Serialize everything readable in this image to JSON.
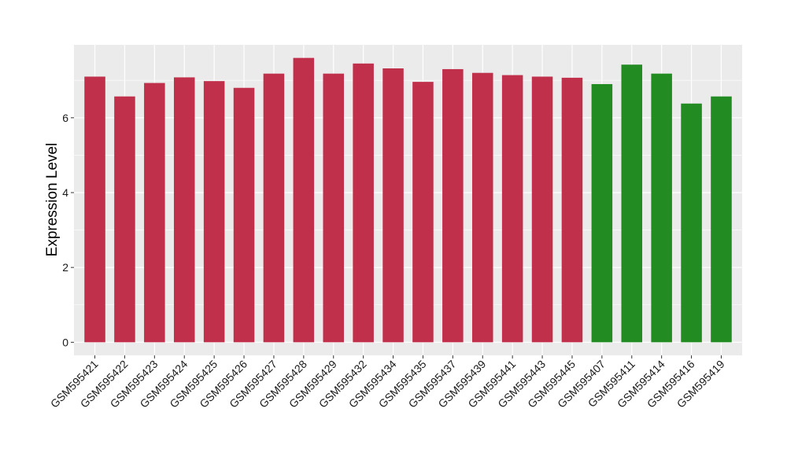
{
  "chart_data": {
    "type": "bar",
    "title": "",
    "xlabel": "",
    "ylabel": "Expression Level",
    "ylim": [
      -0.35,
      7.95
    ],
    "yticks": [
      0,
      2,
      4,
      6
    ],
    "grid": true,
    "legend": "none",
    "panel_background": "#ebebeb",
    "grid_color": "#ffffff",
    "categories": [
      "GSM595421",
      "GSM595422",
      "GSM595423",
      "GSM595424",
      "GSM595425",
      "GSM595426",
      "GSM595427",
      "GSM595428",
      "GSM595429",
      "GSM595432",
      "GSM595434",
      "GSM595435",
      "GSM595437",
      "GSM595439",
      "GSM595441",
      "GSM595443",
      "GSM595445",
      "GSM595407",
      "GSM595411",
      "GSM595414",
      "GSM595416",
      "GSM595419"
    ],
    "values": [
      7.1,
      6.57,
      6.93,
      7.08,
      6.98,
      6.8,
      7.18,
      7.6,
      7.18,
      7.45,
      7.32,
      6.96,
      7.3,
      7.2,
      7.14,
      7.1,
      7.07,
      6.9,
      7.42,
      7.18,
      6.38,
      6.57
    ],
    "groups": [
      "red",
      "red",
      "red",
      "red",
      "red",
      "red",
      "red",
      "red",
      "red",
      "red",
      "red",
      "red",
      "red",
      "red",
      "red",
      "red",
      "red",
      "green",
      "green",
      "green",
      "green",
      "green"
    ],
    "colors": {
      "red": "#c0304b",
      "green": "#228b22"
    }
  }
}
